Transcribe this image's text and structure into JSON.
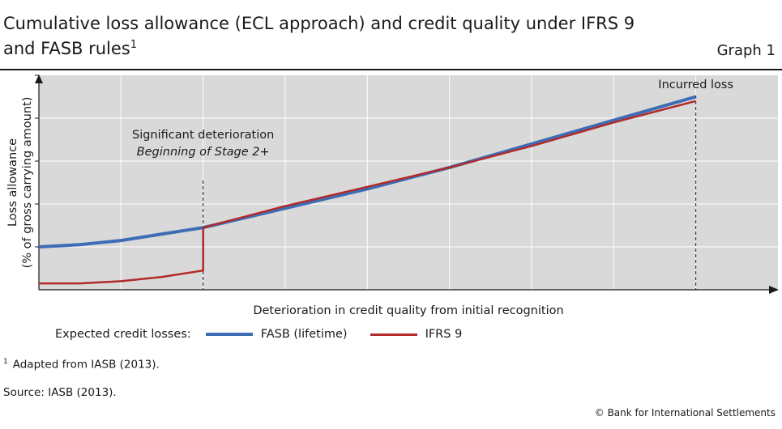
{
  "header": {
    "title": "Cumulative loss allowance (ECL approach) and credit quality under IFRS 9 and FASB rules",
    "title_sup": "1",
    "graph_label": "Graph 1"
  },
  "chart_data": {
    "type": "line",
    "title": "Cumulative loss allowance (ECL approach) and credit quality under IFRS 9 and FASB rules",
    "xlabel": "Deterioration in credit quality from initial recognition",
    "ylabel": "Loss allowance",
    "ylabel2": "(% of gross carrying amount)",
    "xlim": [
      0,
      9
    ],
    "ylim": [
      0,
      5
    ],
    "grid": true,
    "legend_title": "Expected credit losses:",
    "legend_position": "bottom",
    "annotations": [
      {
        "text": "Significant deterioration",
        "sub": "Beginning of Stage 2+",
        "x": 2
      },
      {
        "text": "Incurred loss",
        "x": 8
      }
    ],
    "series": [
      {
        "name": "FASB (lifetime)",
        "color": "#3e6db5",
        "x": [
          0,
          0.5,
          1,
          1.5,
          2,
          3,
          4,
          5,
          6,
          7,
          8
        ],
        "y": [
          1.0,
          1.05,
          1.15,
          1.3,
          1.45,
          1.9,
          2.35,
          2.85,
          3.4,
          3.95,
          4.5
        ]
      },
      {
        "name": "IFRS 9",
        "color": "#b22a2a",
        "x": [
          0,
          0.5,
          1,
          1.5,
          2,
          2,
          3,
          4,
          5,
          6,
          7,
          8
        ],
        "y": [
          0.15,
          0.15,
          0.2,
          0.3,
          0.45,
          1.45,
          1.95,
          2.4,
          2.85,
          3.35,
          3.9,
          4.4
        ]
      }
    ]
  },
  "footnote": {
    "sup": "1",
    "text": "Adapted from IASB (2013)."
  },
  "source": "Source: IASB (2013).",
  "copyright": "© Bank for International Settlements"
}
